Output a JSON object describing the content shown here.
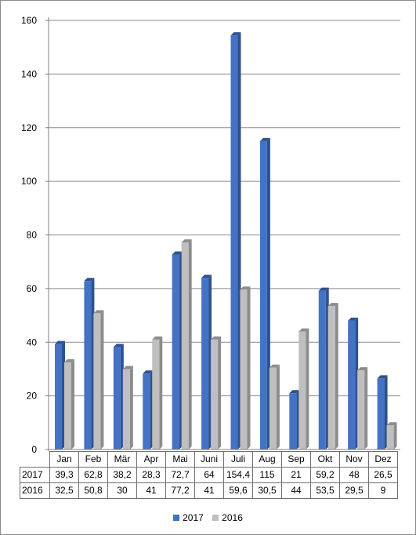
{
  "chart_data": {
    "type": "bar",
    "title": "",
    "xlabel": "",
    "ylabel": "",
    "ylim": [
      0,
      160
    ],
    "yticks": [
      0,
      20,
      40,
      60,
      80,
      100,
      120,
      140,
      160
    ],
    "grid": true,
    "legend_position": "bottom",
    "categories": [
      "Jan",
      "Feb",
      "Mär",
      "Apr",
      "Mai",
      "Juni",
      "Juli",
      "Aug",
      "Sep",
      "Okt",
      "Nov",
      "Dez"
    ],
    "series": [
      {
        "name": "2017",
        "color": "#4472c4",
        "values": [
          39.3,
          62.8,
          38.2,
          28.3,
          72.7,
          64,
          154.4,
          115,
          21,
          59.2,
          48,
          26.5
        ],
        "labels": [
          "39,3",
          "62,8",
          "38,2",
          "28,3",
          "72,7",
          "64",
          "154,4",
          "115",
          "21",
          "59,2",
          "48",
          "26,5"
        ]
      },
      {
        "name": "2016",
        "color": "#bfbfbf",
        "values": [
          32.5,
          50.8,
          30,
          41,
          77.2,
          41,
          59.6,
          30.5,
          44,
          53.5,
          29.5,
          9
        ],
        "labels": [
          "32,5",
          "50,8",
          "30",
          "41",
          "77,2",
          "41",
          "59,6",
          "30,5",
          "44",
          "53,5",
          "29,5",
          "9"
        ]
      }
    ]
  }
}
